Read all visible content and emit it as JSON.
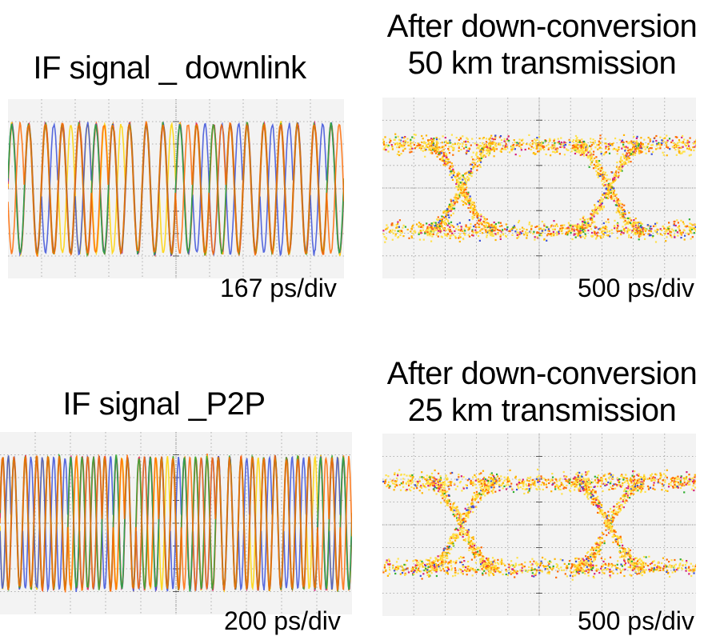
{
  "chart_data": [
    {
      "type": "line",
      "panel": "top-left",
      "title": "IF signal _ downlink",
      "scale_label": "167 ps/div",
      "divisions": {
        "x": 10,
        "y": 8
      },
      "waveform": "sinusoidal IF carrier with phase jumps",
      "cycles_shown": 20,
      "colors": [
        "#ff6a00",
        "#ffd400",
        "#d6207a",
        "#3a4fd8",
        "#2fae2f"
      ]
    },
    {
      "type": "scatter",
      "panel": "top-right",
      "title": [
        "After down-conversion",
        "50 km transmission"
      ],
      "scale_label": "500 ps/div",
      "divisions": {
        "x": 10,
        "y": 8
      },
      "waveform": "eye diagram",
      "eye_crossings": 2,
      "colors": [
        "#ffe14a",
        "#ffb400",
        "#ff6a00",
        "#d6207a",
        "#3a4fd8",
        "#2fae2f"
      ]
    },
    {
      "type": "line",
      "panel": "bottom-left",
      "title": "IF signal _P2P",
      "scale_label": "200 ps/div",
      "divisions": {
        "x": 10,
        "y": 8
      },
      "waveform": "sinusoidal IF carrier with phase jumps",
      "cycles_shown": 31,
      "colors": [
        "#ff6a00",
        "#ffd400",
        "#d6207a",
        "#3a4fd8",
        "#2fae2f"
      ]
    },
    {
      "type": "scatter",
      "panel": "bottom-right",
      "title": [
        "After down-conversion",
        "25 km transmission"
      ],
      "scale_label": "500 ps/div",
      "divisions": {
        "x": 10,
        "y": 8
      },
      "waveform": "eye diagram",
      "eye_crossings": 2,
      "colors": [
        "#ffe14a",
        "#ffb400",
        "#ff6a00",
        "#d6207a",
        "#3a4fd8",
        "#2fae2f"
      ]
    }
  ]
}
